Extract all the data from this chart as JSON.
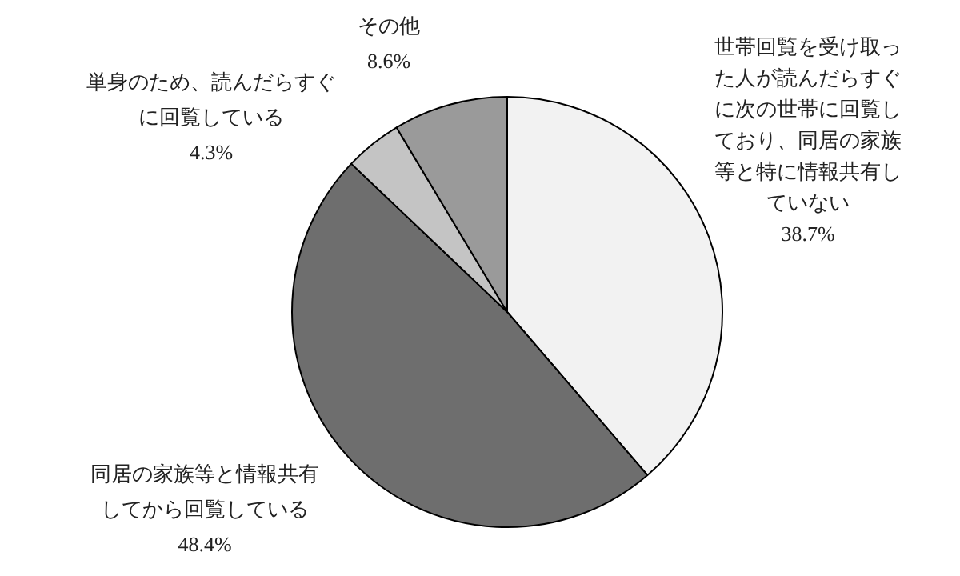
{
  "chart_data": {
    "type": "pie",
    "categories": [
      "世帯回覧を受け取った人が読んだらすぐに次の世帯に回覧しており、同居の家族等と特に情報共有していない",
      "同居の家族等と情報共有してから回覧している",
      "単身のため、読んだらすぐに回覧している",
      "その他"
    ],
    "values": [
      38.7,
      48.4,
      4.3,
      8.6
    ],
    "value_labels": [
      "38.7%",
      "48.4%",
      "4.3%",
      "8.6%"
    ],
    "colors": [
      "#f2f2f2",
      "#6e6e6e",
      "#c4c4c4",
      "#9a9a9a"
    ],
    "legend": false
  }
}
